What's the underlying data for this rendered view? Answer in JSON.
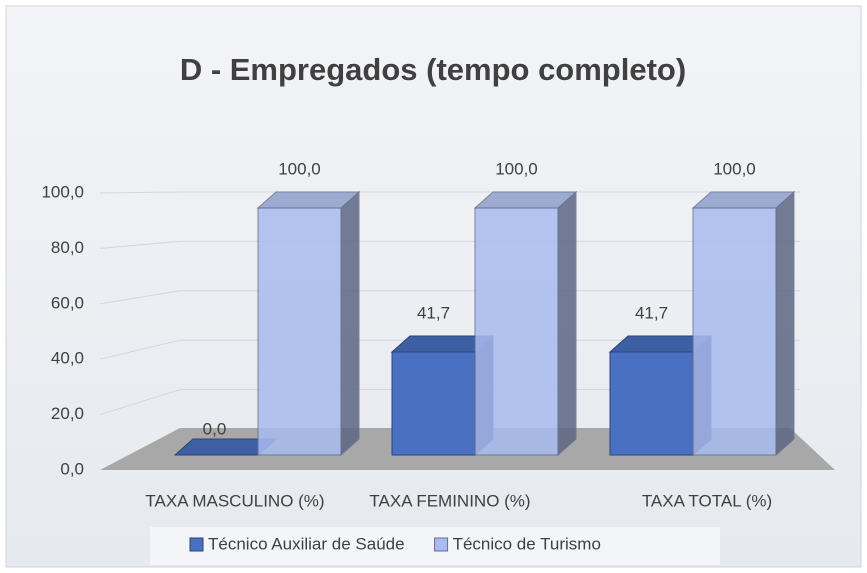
{
  "chart_data": {
    "type": "bar3d",
    "title": "D - Empregados (tempo completo)",
    "categories": [
      "TAXA MASCULINO (%)",
      "TAXA FEMININO (%)",
      "TAXA TOTAL (%)"
    ],
    "series": [
      {
        "name": "Técnico Auxiliar de Saúde",
        "color": "#4a70c2",
        "values": [
          0,
          41.7,
          41.7
        ],
        "value_labels": [
          "0,0",
          "41,7",
          "41,7"
        ]
      },
      {
        "name": "Técnico de Turismo",
        "color": "#a9bbef",
        "values": [
          100,
          100,
          100
        ],
        "value_labels": [
          "100,0",
          "100,0",
          "100,0"
        ]
      }
    ],
    "ylim": [
      0,
      100
    ],
    "yticks": [
      {
        "value": 0,
        "label": "0,0"
      },
      {
        "value": 20,
        "label": "20,0"
      },
      {
        "value": 40,
        "label": "40,0"
      },
      {
        "value": 60,
        "label": "60,0"
      },
      {
        "value": 80,
        "label": "80,0"
      },
      {
        "value": 100,
        "label": "100,0"
      }
    ],
    "grid": true,
    "legend": "bottom"
  }
}
